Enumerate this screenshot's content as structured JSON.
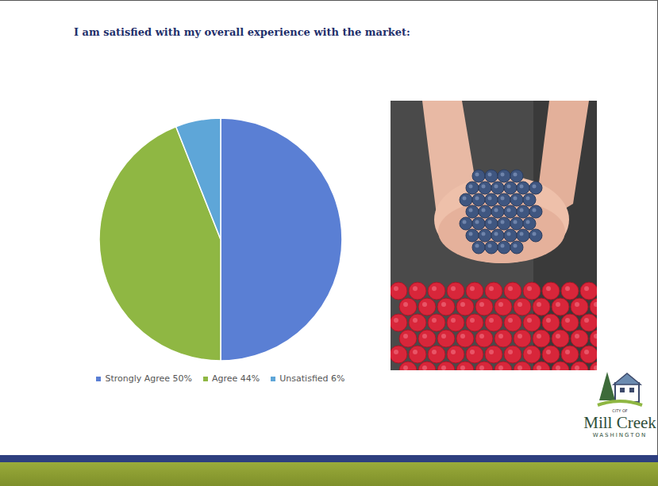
{
  "chart_data": {
    "type": "pie",
    "title": "I am satisfied with my overall experience with the market:",
    "categories": [
      "Strongly Agree 50%",
      "Agree 44%",
      "Unsatisfied 6%"
    ],
    "values": [
      50,
      44,
      6
    ],
    "colors": [
      "#5a7fd4",
      "#8fb743",
      "#5ea6d8"
    ],
    "legend": "bottom"
  },
  "logo": {
    "top": "CITY OF",
    "name": "Mill Creek",
    "bottom": "WASHINGTON"
  }
}
